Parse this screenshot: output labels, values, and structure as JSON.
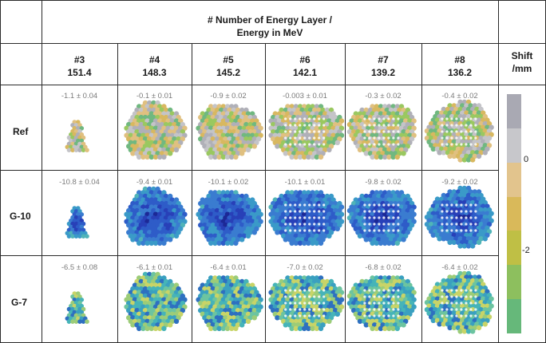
{
  "header": {
    "line1": "# Number of Energy Layer /",
    "line2": "Energy in MeV",
    "shift_line1": "Shift",
    "shift_line2": "/mm"
  },
  "columns": [
    {
      "layer": "#3",
      "energy": "151.4"
    },
    {
      "layer": "#4",
      "energy": "148.3"
    },
    {
      "layer": "#5",
      "energy": "145.2"
    },
    {
      "layer": "#6",
      "energy": "142.1"
    },
    {
      "layer": "#7",
      "energy": "139.2"
    },
    {
      "layer": "#8",
      "energy": "136.2"
    }
  ],
  "rows": [
    {
      "label": "Ref",
      "values": [
        "-1.1 ± 0.04",
        "-0.1 ± 0.01",
        "-0.9 ± 0.02",
        "-0.003 ± 0.01",
        "-0.3 ± 0.02",
        "-0.4 ± 0.02"
      ]
    },
    {
      "label": "G-10",
      "values": [
        "-10.8 ± 0.04",
        "-9.4 ± 0.01",
        "-10.1 ± 0.02",
        "-10.1 ± 0.01",
        "-9.8 ± 0.02",
        "-9.2 ± 0.02"
      ]
    },
    {
      "label": "G-7",
      "values": [
        "-6.5 ± 0.08",
        "-6.1 ± 0.01",
        "-6.4 ± 0.01",
        "-7.0 ± 0.02",
        "-6.8 ± 0.02",
        "-6.4 ± 0.02"
      ]
    }
  ],
  "colorbar": {
    "ticks": [
      "0",
      "-2"
    ],
    "colors": [
      "#a9a9b3",
      "#c7c7cb",
      "#e2c48d",
      "#d9b95a",
      "#bfbf45",
      "#8dbf5e",
      "#66b87a"
    ]
  },
  "palettes": {
    "Ref": [
      "#b0b0b8",
      "#c4c4c8",
      "#e0c080",
      "#d8b860",
      "#9ac860",
      "#70b880"
    ],
    "G-10": [
      "#1c2896",
      "#2840b8",
      "#2e5cc8",
      "#3a7cd0",
      "#3a9ac8",
      "#50b4b8"
    ],
    "G-7": [
      "#3aa0c0",
      "#46b4b8",
      "#6cc4a0",
      "#9ccc78",
      "#c8d468",
      "#2e70c0"
    ]
  }
}
